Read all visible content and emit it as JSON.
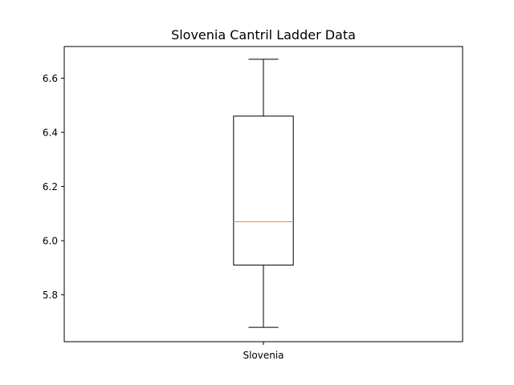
{
  "chart_data": {
    "type": "box",
    "title": "Slovenia Cantril Ladder Data",
    "xlabel": "",
    "ylabel": "",
    "categories": [
      "Slovenia"
    ],
    "boxes": [
      {
        "name": "Slovenia",
        "whisker_low": 5.68,
        "q1": 5.91,
        "median": 6.07,
        "q3": 6.46,
        "whisker_high": 6.67
      }
    ],
    "ylim": [
      5.627,
      6.717
    ],
    "y_ticks": [
      5.8,
      6.0,
      6.2,
      6.4,
      6.6
    ],
    "y_tick_labels": [
      "5.8",
      "6.0",
      "6.2",
      "6.4",
      "6.6"
    ],
    "grid": false,
    "colors": {
      "box": "#000000",
      "median": "#ff7f0e"
    }
  }
}
